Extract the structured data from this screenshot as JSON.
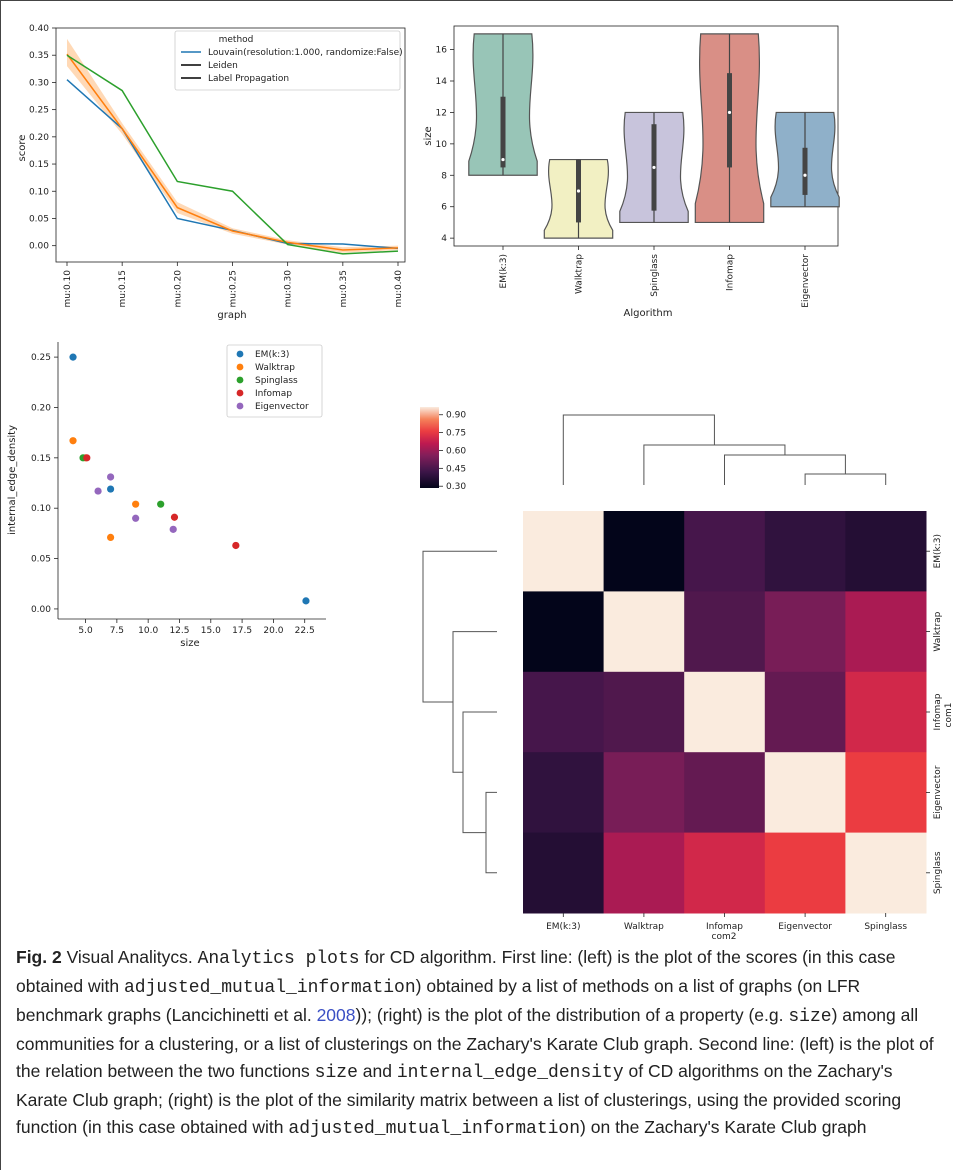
{
  "chart_data": [
    {
      "type": "line",
      "xlabel": "graph",
      "ylabel": "score",
      "categories": [
        "mu:0.10",
        "mu:0.15",
        "mu:0.20",
        "mu:0.25",
        "mu:0.30",
        "mu:0.35",
        "mu:0.40"
      ],
      "ylim": [
        -0.03,
        0.4
      ],
      "yticks": [
        "0.40",
        "0.35",
        "0.30",
        "0.25",
        "0.20",
        "0.15",
        "0.10",
        "0.05",
        "0.00"
      ],
      "legend_title": "method",
      "legend_position": "top-right",
      "series": [
        {
          "name": "Louvain(resolution:1.000, randomize:False)",
          "color": "#1f77b4",
          "values": [
            0.305,
            0.215,
            0.05,
            0.028,
            0.004,
            0.003,
            -0.005
          ]
        },
        {
          "name": "Leiden",
          "color": "#ff7f0e",
          "values": [
            0.352,
            0.215,
            0.07,
            0.027,
            0.006,
            -0.008,
            -0.004
          ],
          "band_low": [
            0.33,
            0.205,
            0.06,
            0.022,
            0.002,
            -0.013,
            -0.008
          ],
          "band_high": [
            0.38,
            0.225,
            0.08,
            0.032,
            0.01,
            -0.003,
            0.0
          ]
        },
        {
          "name": "Label Propagation",
          "color": "#2ca02c",
          "values": [
            0.35,
            0.285,
            0.118,
            0.1,
            0.002,
            -0.015,
            -0.01
          ]
        }
      ],
      "legend_line_colors": [
        "#1f77b4",
        "#000000",
        "#000000"
      ]
    },
    {
      "type": "violin",
      "xlabel": "Algorithm",
      "ylabel": "size",
      "ylim": [
        3.5,
        17.5
      ],
      "yticks": [
        "16",
        "14",
        "12",
        "10",
        "8",
        "6",
        "4"
      ],
      "categories": [
        "EM(k:3)",
        "Walktrap",
        "Spinglass",
        "Infomap",
        "Eigenvector"
      ],
      "colors": [
        "#98c5b7",
        "#f2f0c3",
        "#c8c4dc",
        "#d98f86",
        "#8fb0c9"
      ],
      "min": [
        8,
        4,
        5,
        5,
        6
      ],
      "max": [
        17,
        9,
        12,
        17,
        12
      ],
      "q1": [
        8.5,
        5,
        5.75,
        8.5,
        6.75
      ],
      "median": [
        9,
        7,
        8.5,
        12,
        8
      ],
      "q3": [
        13,
        9,
        11.25,
        14.5,
        9.75
      ]
    },
    {
      "type": "scatter",
      "xlabel": "size",
      "ylabel": "internal_edge_density",
      "xlim": [
        2.8,
        24.2
      ],
      "ylim": [
        -0.01,
        0.265
      ],
      "xticks": [
        "5.0",
        "7.5",
        "10.0",
        "12.5",
        "15.0",
        "17.5",
        "20.0",
        "22.5"
      ],
      "yticks": [
        "0.25",
        "0.20",
        "0.15",
        "0.10",
        "0.05",
        "0.00"
      ],
      "legend_position": "top-right",
      "series": [
        {
          "name": "EM(k:3)",
          "color": "#1f77b4",
          "points": [
            [
              4,
              0.25
            ],
            [
              7,
              0.119
            ],
            [
              22.6,
              0.008
            ]
          ]
        },
        {
          "name": "Walktrap",
          "color": "#ff7f0e",
          "points": [
            [
              4,
              0.167
            ],
            [
              5,
              0.15
            ],
            [
              7,
              0.071
            ],
            [
              9,
              0.104
            ]
          ]
        },
        {
          "name": "Spinglass",
          "color": "#2ca02c",
          "points": [
            [
              4.8,
              0.15
            ],
            [
              11,
              0.104
            ]
          ]
        },
        {
          "name": "Infomap",
          "color": "#d62728",
          "points": [
            [
              5.1,
              0.15
            ],
            [
              12.1,
              0.091
            ],
            [
              17,
              0.063
            ]
          ]
        },
        {
          "name": "Eigenvector",
          "color": "#9467bd",
          "points": [
            [
              6,
              0.117
            ],
            [
              7,
              0.131
            ],
            [
              9,
              0.09
            ],
            [
              12,
              0.079
            ]
          ]
        }
      ]
    },
    {
      "type": "heatmap",
      "xlabel": "com2",
      "ylabel": "com1",
      "columns": [
        "EM(k:3)",
        "Walktrap",
        "Infomap",
        "Eigenvector",
        "Spinglass"
      ],
      "rows": [
        "EM(k:3)",
        "Walktrap",
        "Infomap",
        "Eigenvector",
        "Spinglass"
      ],
      "matrix": [
        [
          1.0,
          0.3,
          0.46,
          0.41,
          0.38
        ],
        [
          0.3,
          1.0,
          0.48,
          0.56,
          0.65
        ],
        [
          0.46,
          0.48,
          1.0,
          0.52,
          0.73
        ],
        [
          0.41,
          0.56,
          0.52,
          1.0,
          0.79
        ],
        [
          0.38,
          0.65,
          0.73,
          0.79,
          1.0
        ]
      ],
      "colorbar_ticks": [
        "0.90",
        "0.75",
        "0.60",
        "0.45",
        "0.30"
      ],
      "colorbar_range": [
        0.3,
        1.0
      ]
    }
  ],
  "caption": {
    "fig_label": "Fig. 2",
    "p1": " Visual Analitycs. ",
    "m1": "Analytics plots",
    "p2": " for CD algorithm. First line: (left) is the plot of the scores (in this case obtained with ",
    "m2": "adjusted_mutual_information",
    "p3": ") obtained by a list of methods on a list of graphs (on LFR benchmark graphs (Lancichinetti et al. ",
    "link": "2008",
    "p4": ")); (right) is the plot of the distribution of a property (e.g. ",
    "m3": "size",
    "p5": ") among all communities for a clustering, or a list of clusterings on the Zachary's Karate Club graph. Second line: (left) is the plot of the relation between the two functions ",
    "m4": "size",
    "p6": " and ",
    "m5": "internal_edge_density",
    "p7": " of CD algorithms on the Zachary's Karate Club graph; (right) is the plot of the similarity matrix between a list of clusterings, using the provided scoring function (in this case obtained with ",
    "m6": "adjusted_mutual_information",
    "p8": ") on the Zachary's Karate Club graph"
  }
}
